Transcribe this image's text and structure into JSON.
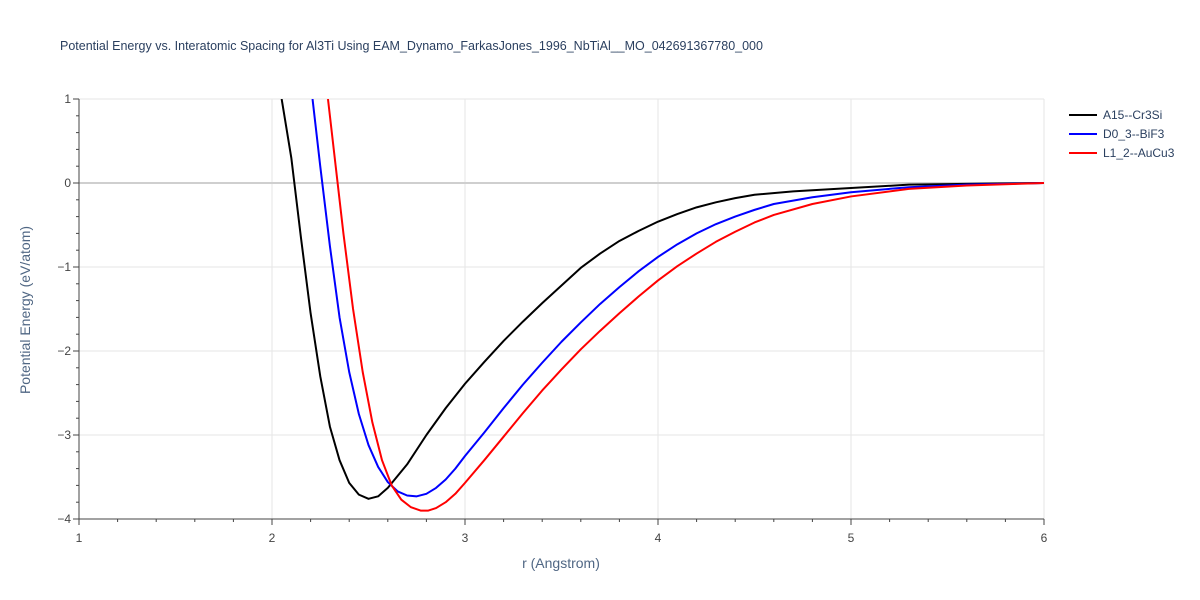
{
  "chart_data": {
    "type": "line",
    "title": "Potential Energy vs. Interatomic Spacing for Al3Ti Using EAM_Dynamo_FarkasJones_1996_NbTiAl__MO_042691367780_000",
    "xlabel": "r (Angstrom)",
    "ylabel": "Potential Energy (eV/atom)",
    "xlim": [
      1,
      6
    ],
    "ylim": [
      -4,
      1
    ],
    "xticks": [
      1,
      2,
      3,
      4,
      5,
      6
    ],
    "yticks": [
      -4,
      -3,
      -2,
      -1,
      0,
      1
    ],
    "ytick_labels": [
      "−4",
      "−3",
      "−2",
      "−1",
      "0",
      "1"
    ],
    "grid": true,
    "legend_position": "top-right",
    "series": [
      {
        "name": "A15--Cr3Si",
        "color": "#000000",
        "x": [
          2.05,
          2.1,
          2.15,
          2.2,
          2.25,
          2.3,
          2.35,
          2.4,
          2.45,
          2.5,
          2.55,
          2.6,
          2.7,
          2.8,
          2.9,
          3.0,
          3.1,
          3.2,
          3.3,
          3.4,
          3.5,
          3.6,
          3.7,
          3.8,
          3.9,
          4.0,
          4.1,
          4.2,
          4.3,
          4.4,
          4.5,
          4.7,
          5.0,
          5.3,
          5.6,
          6.0
        ],
        "y": [
          1.0,
          0.3,
          -0.65,
          -1.55,
          -2.3,
          -2.9,
          -3.3,
          -3.57,
          -3.71,
          -3.76,
          -3.73,
          -3.63,
          -3.35,
          -3.0,
          -2.68,
          -2.39,
          -2.13,
          -1.88,
          -1.65,
          -1.43,
          -1.22,
          -1.01,
          -0.84,
          -0.69,
          -0.57,
          -0.46,
          -0.37,
          -0.29,
          -0.23,
          -0.18,
          -0.14,
          -0.1,
          -0.06,
          -0.02,
          -0.01,
          0.0
        ]
      },
      {
        "name": "D0_3--BiF3",
        "color": "#0000ff",
        "x": [
          2.21,
          2.25,
          2.3,
          2.35,
          2.4,
          2.45,
          2.5,
          2.55,
          2.6,
          2.65,
          2.7,
          2.75,
          2.8,
          2.85,
          2.9,
          2.95,
          3.0,
          3.1,
          3.2,
          3.3,
          3.4,
          3.5,
          3.6,
          3.7,
          3.8,
          3.9,
          4.0,
          4.1,
          4.2,
          4.3,
          4.4,
          4.5,
          4.6,
          4.8,
          5.0,
          5.3,
          5.6,
          6.0
        ],
        "y": [
          1.0,
          0.2,
          -0.75,
          -1.6,
          -2.25,
          -2.75,
          -3.12,
          -3.38,
          -3.56,
          -3.67,
          -3.72,
          -3.73,
          -3.7,
          -3.63,
          -3.53,
          -3.4,
          -3.25,
          -2.97,
          -2.68,
          -2.4,
          -2.14,
          -1.89,
          -1.66,
          -1.44,
          -1.24,
          -1.05,
          -0.88,
          -0.73,
          -0.6,
          -0.49,
          -0.4,
          -0.32,
          -0.25,
          -0.17,
          -0.11,
          -0.05,
          -0.02,
          0.0
        ]
      },
      {
        "name": "L1_2--AuCu3",
        "color": "#ff0000",
        "x": [
          2.29,
          2.33,
          2.37,
          2.42,
          2.47,
          2.52,
          2.57,
          2.62,
          2.67,
          2.72,
          2.77,
          2.81,
          2.85,
          2.9,
          2.95,
          3.0,
          3.1,
          3.2,
          3.3,
          3.4,
          3.5,
          3.6,
          3.7,
          3.8,
          3.9,
          4.0,
          4.1,
          4.2,
          4.3,
          4.4,
          4.5,
          4.6,
          4.8,
          5.0,
          5.3,
          5.6,
          6.0
        ],
        "y": [
          1.0,
          0.2,
          -0.6,
          -1.5,
          -2.25,
          -2.85,
          -3.3,
          -3.6,
          -3.77,
          -3.86,
          -3.9,
          -3.9,
          -3.87,
          -3.8,
          -3.7,
          -3.57,
          -3.3,
          -3.02,
          -2.74,
          -2.47,
          -2.22,
          -1.98,
          -1.76,
          -1.55,
          -1.35,
          -1.16,
          -0.99,
          -0.84,
          -0.7,
          -0.58,
          -0.47,
          -0.38,
          -0.25,
          -0.16,
          -0.07,
          -0.03,
          0.0
        ]
      }
    ]
  }
}
